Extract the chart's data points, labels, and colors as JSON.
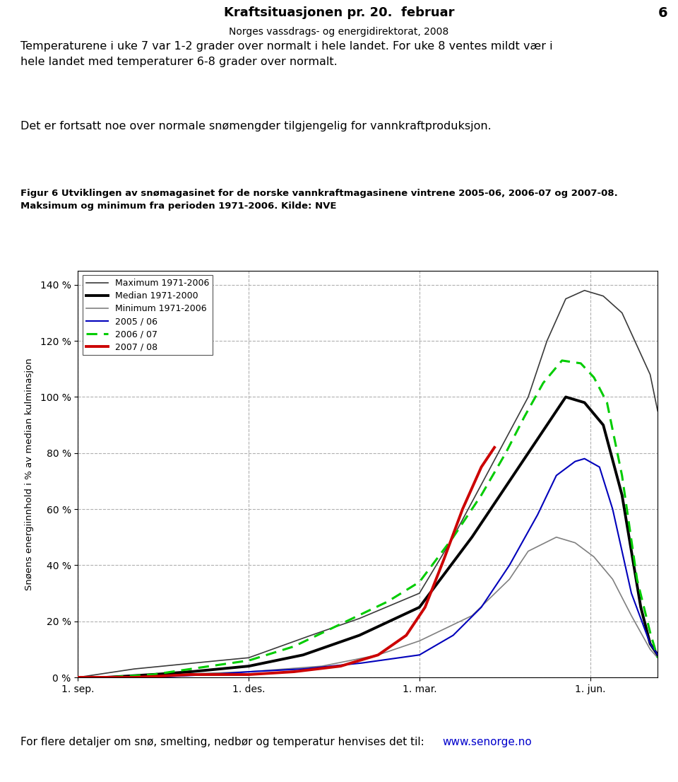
{
  "title_main": "Kraftsituasjonen pr. 20.  februar",
  "title_sub": "Norges vassdrags- og energidirektorat, 2008",
  "page_number": "6",
  "text1": "Temperaturene i uke 7 var 1-2 grader over normalt i hele landet. For uke 8 ventes mildt vær i\nhele landet med temperaturer 6-8 grader over normalt.",
  "text2": "Det er fortsatt noe over normale snømengder tilgjengelig for vannkraftproduksjon.",
  "fig_caption_bold": "Figur 6 Utviklingen av snømagasinet for de norske vannkraftmagasinene vintrene 2005-06, 2006-07 og 2007-08.\nMaksimum og minimum fra perioden 1971-2006. Kilde: NVE",
  "footer_text": "For flere detaljer om snø, smelting, nedbør og temperatur henvises det til: ",
  "footer_url": "www.senorge.no",
  "ylabel": "Snøens energiinnhold i % av median kulminasjon",
  "xlabel_ticks": [
    "1. sep.",
    "1. des.",
    "1. mar.",
    "1. jun."
  ],
  "yticks": [
    0,
    20,
    40,
    60,
    80,
    100,
    120,
    140
  ],
  "ytick_labels": [
    "0 %",
    "20 %",
    "40 %",
    "60 %",
    "80 %",
    "100 %",
    "120 %",
    "140 %"
  ],
  "background_color": "#ffffff",
  "grid_color": "#b0b0b0",
  "max_color": "#3a3a3a",
  "median_color": "#000000",
  "min_color": "#808080",
  "c2005_color": "#0000bb",
  "c2006_color": "#00cc00",
  "c2007_color": "#cc0000"
}
